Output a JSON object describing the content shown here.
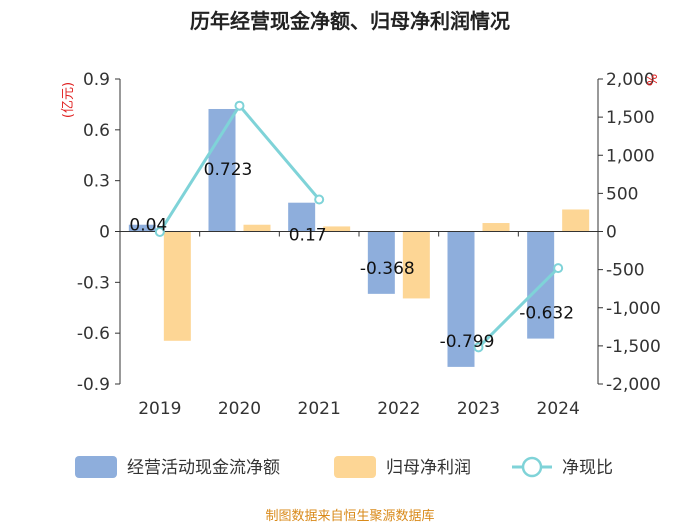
{
  "chart_data": {
    "type": "bar+line",
    "title": "历年经营现金净额、归母净利润情况",
    "categories": [
      "2019",
      "2020",
      "2021",
      "2022",
      "2023",
      "2024"
    ],
    "series": [
      {
        "name": "经营活动现金流净额",
        "axis": "left",
        "kind": "bar",
        "color": "#8eaedc",
        "values": [
          0.04,
          0.723,
          0.17,
          -0.368,
          -0.799,
          -0.632
        ]
      },
      {
        "name": "归母净利润",
        "axis": "left",
        "kind": "bar",
        "color": "#fdd695",
        "values": [
          -0.645,
          0.04,
          0.03,
          -0.395,
          0.05,
          0.13
        ]
      },
      {
        "name": "净现比",
        "axis": "right",
        "kind": "line",
        "color": "#7fd3d8",
        "values": [
          -6,
          1650,
          420,
          null,
          -1520,
          -480
        ]
      }
    ],
    "data_labels": [
      "0.04",
      "0.723",
      "0.17",
      "-0.368",
      "-0.799",
      "-0.632"
    ],
    "left_axis": {
      "unit": "(亿元)",
      "min": -0.9,
      "max": 0.9,
      "ticks": [
        0.9,
        0.6,
        0.3,
        0,
        -0.3,
        -0.6,
        -0.9
      ],
      "tick_labels": [
        "0.9",
        "0.6",
        "0.3",
        "0",
        "-0.3",
        "-0.6",
        "-0.9"
      ]
    },
    "right_axis": {
      "unit": "%",
      "min": -2000,
      "max": 2000,
      "ticks": [
        2000,
        1500,
        1000,
        500,
        0,
        -500,
        -1000,
        -1500,
        -2000
      ],
      "tick_labels": [
        "2,000",
        "1,500",
        "1,000",
        "500",
        "0",
        "-500",
        "-1,000",
        "-1,500",
        "-2,000"
      ]
    },
    "legend": {
      "position": "bottom",
      "items": [
        "经营活动现金流净额",
        "归母净利润",
        "净现比"
      ]
    },
    "source": "制图数据来自恒生聚源数据库"
  }
}
